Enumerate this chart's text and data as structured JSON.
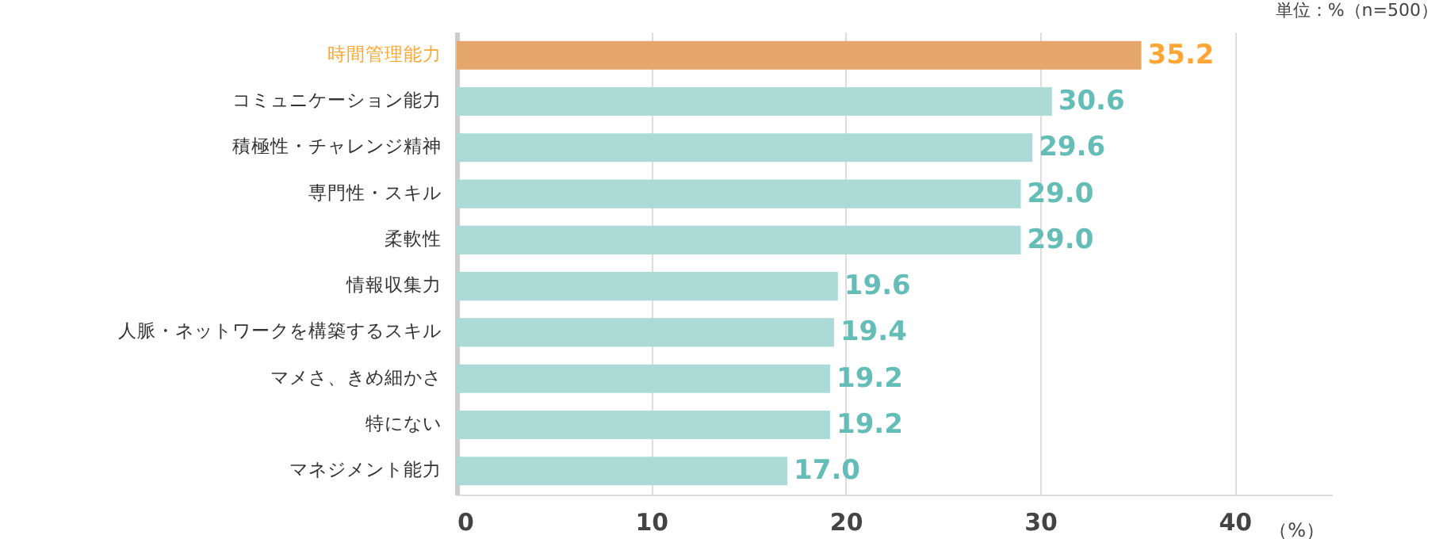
{
  "chart_data": {
    "type": "bar",
    "orientation": "horizontal",
    "categories": [
      "時間管理能力",
      "コミュニケーション能力",
      "積極性・チャレンジ精神",
      "専門性・スキル",
      "柔軟性",
      "情報収集力",
      "人脈・ネットワークを構築するスキル",
      "マメさ、きめ細かさ",
      "特にない",
      "マネジメント能力"
    ],
    "values": [
      35.2,
      30.6,
      29.6,
      29.0,
      29.0,
      19.6,
      19.4,
      19.2,
      19.2,
      17.0
    ],
    "value_labels": [
      "35.2",
      "30.6",
      "29.6",
      "29.0",
      "29.0",
      "19.6",
      "19.4",
      "19.2",
      "19.2",
      "17.0"
    ],
    "colors": [
      "#e5a76b",
      "#acdbd7",
      "#acdbd7",
      "#acdbd7",
      "#acdbd7",
      "#acdbd7",
      "#acdbd7",
      "#acdbd7",
      "#acdbd7",
      "#acdbd7"
    ],
    "xlim": [
      0,
      45
    ],
    "xticks": [
      0,
      10,
      20,
      30,
      40
    ],
    "xlabel": "（%）",
    "grid": "x",
    "annotations": [
      "単位：%（n=500）"
    ]
  }
}
